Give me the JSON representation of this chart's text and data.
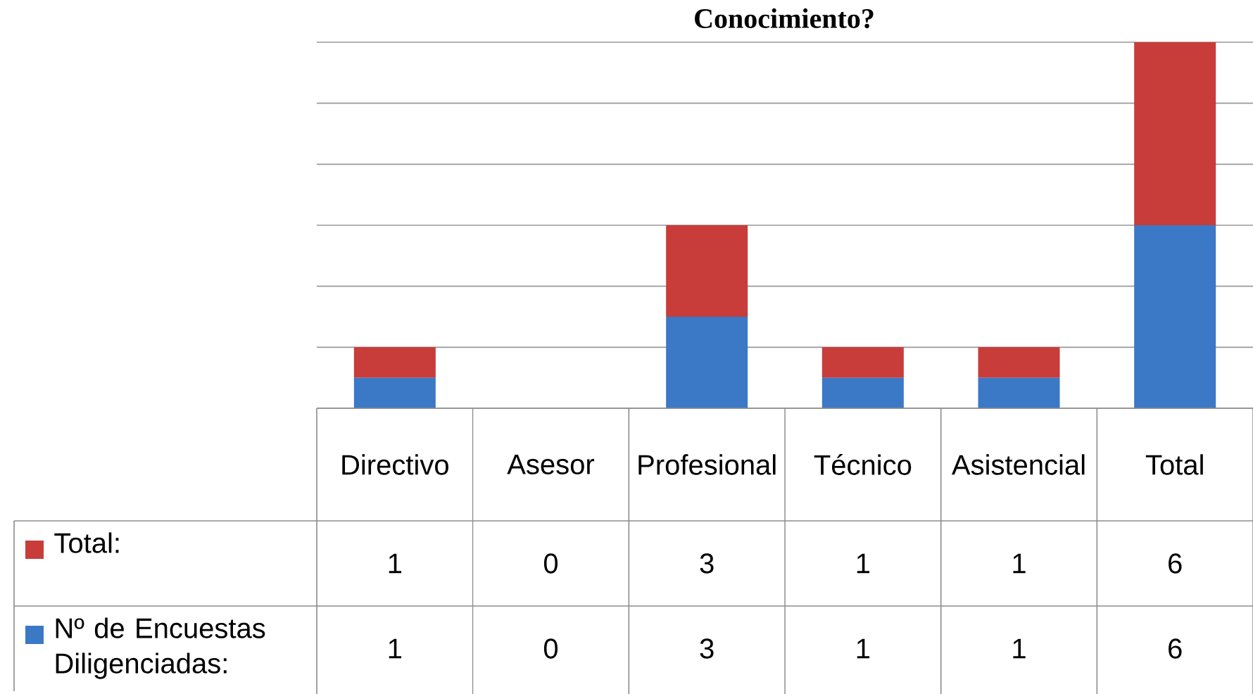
{
  "chart_data": {
    "type": "bar",
    "title": "Conocimiento?",
    "stacked": true,
    "data_labels": true,
    "legend": "bottom",
    "grid": "y",
    "categories": [
      "Directivo",
      "Asesor",
      "Profesional",
      "Técnico",
      "Asistencial",
      "Total"
    ],
    "ylim": [
      0,
      12
    ],
    "yticks": [
      {
        "value": 0,
        "label": null
      },
      {
        "value": 2,
        "label": null
      },
      {
        "value": 4,
        "label": null
      },
      {
        "value": 6,
        "label": null
      },
      {
        "value": 8,
        "label": null
      },
      {
        "value": 10,
        "label": null
      },
      {
        "value": 12,
        "label": null
      }
    ],
    "series": [
      {
        "name": "Nº de Encuestas Diligenciadas:",
        "color": "#3b78c6",
        "values": [
          1,
          0,
          3,
          1,
          1,
          6
        ]
      },
      {
        "name": "Total:",
        "color": "#c83c3a",
        "values": [
          1,
          0,
          3,
          1,
          1,
          6
        ]
      }
    ]
  }
}
